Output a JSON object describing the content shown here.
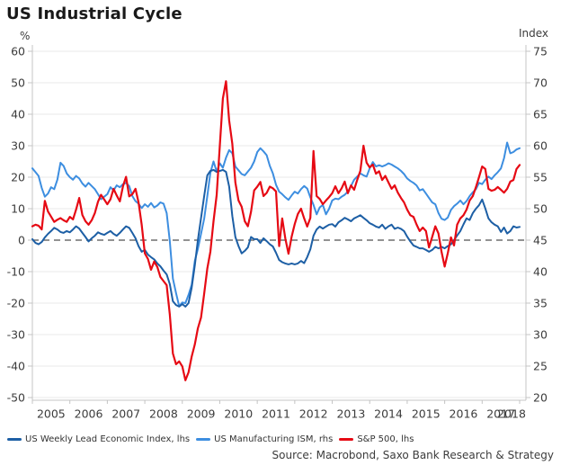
{
  "header": {
    "title": "US Industrial Cycle"
  },
  "footer": {
    "source": "Source: Macrobond, Saxo Bank Research & Strategy"
  },
  "chart_data": {
    "type": "line",
    "title": "US Industrial Cycle",
    "x_start": 2005.0,
    "x_end": 2018.0,
    "x_step_months": 1,
    "x_tick_years": [
      2005,
      2006,
      2007,
      2008,
      2009,
      2010,
      2011,
      2012,
      2013,
      2014,
      2015,
      2016,
      2017,
      2018
    ],
    "left_axis": {
      "unit": "%",
      "min": -50,
      "max": 60,
      "tick_step": 10,
      "ticks": [
        60,
        50,
        40,
        30,
        20,
        10,
        0,
        -10,
        -20,
        -30,
        -40,
        -50
      ]
    },
    "right_axis": {
      "unit": "Index",
      "min": 20,
      "max": 75,
      "tick_step": 5,
      "ticks": [
        75,
        70,
        65,
        60,
        55,
        50,
        45,
        40,
        35,
        30,
        25,
        20
      ]
    },
    "zero_line": {
      "lhs_value": 0,
      "style": "dashed",
      "color": "#6f6f6f"
    },
    "grid": "horizontal",
    "grid_color": "#e8e8e8",
    "frame_color": "#c4c4c4",
    "legend_position": "bottom-left",
    "draw_order": [
      1,
      0,
      2
    ],
    "series": [
      {
        "name": "US Weekly Lead Economic Index, lhs",
        "axis": "lhs",
        "color": "#1d5fa5",
        "width": 2,
        "values": [
          0.3,
          -0.9,
          -1.3,
          -0.6,
          0.9,
          2.0,
          2.9,
          3.9,
          3.4,
          2.6,
          2.3,
          2.9,
          2.5,
          3.4,
          4.4,
          3.7,
          2.3,
          1.0,
          -0.4,
          0.6,
          1.4,
          2.5,
          2.0,
          1.7,
          2.3,
          2.9,
          2.0,
          1.4,
          2.3,
          3.4,
          4.4,
          3.9,
          2.3,
          0.6,
          -1.9,
          -3.7,
          -3.1,
          -4.6,
          -5.4,
          -6.1,
          -7.4,
          -8.3,
          -9.7,
          -10.9,
          -14.0,
          -19.4,
          -20.6,
          -21.1,
          -20.3,
          -21.1,
          -20.0,
          -15.1,
          -8.0,
          0.0,
          7.0,
          14.0,
          20.6,
          22.0,
          22.3,
          21.7,
          22.0,
          22.3,
          21.7,
          17.0,
          7.7,
          1.0,
          -1.9,
          -4.2,
          -3.4,
          -2.3,
          1.0,
          0.3,
          0.3,
          -0.9,
          0.6,
          -0.3,
          -1.3,
          -2.0,
          -4.0,
          -6.3,
          -7.0,
          -7.4,
          -7.7,
          -7.4,
          -7.7,
          -7.4,
          -6.6,
          -7.3,
          -5.4,
          -2.9,
          1.4,
          3.4,
          4.3,
          3.7,
          4.3,
          4.9,
          5.1,
          4.3,
          5.7,
          6.3,
          7.1,
          6.6,
          6.0,
          6.9,
          7.4,
          7.9,
          7.1,
          6.3,
          5.4,
          4.9,
          4.3,
          4.0,
          4.9,
          3.6,
          4.4,
          4.9,
          3.6,
          4.0,
          3.6,
          2.9,
          1.1,
          -0.4,
          -1.7,
          -2.1,
          -2.6,
          -2.6,
          -3.1,
          -3.7,
          -3.1,
          -2.1,
          -2.6,
          -2.1,
          -2.6,
          -1.9,
          -1.3,
          0.0,
          1.5,
          2.9,
          5.0,
          6.9,
          6.4,
          8.6,
          10.0,
          11.1,
          12.9,
          10.1,
          6.9,
          5.7,
          4.9,
          4.4,
          2.6,
          4.0,
          2.1,
          2.9,
          4.4,
          4.0,
          4.2
        ]
      },
      {
        "name": "US Manufacturing ISM, rhs",
        "axis": "rhs",
        "color": "#3d8ee0",
        "width": 2,
        "values": [
          56.4,
          55.8,
          55.2,
          53.3,
          51.9,
          52.4,
          53.4,
          53.1,
          54.6,
          57.3,
          56.8,
          55.6,
          55.0,
          54.6,
          55.2,
          54.8,
          54.0,
          53.5,
          54.1,
          53.6,
          53.1,
          52.3,
          51.5,
          51.9,
          52.3,
          53.4,
          52.9,
          53.7,
          53.4,
          53.9,
          54.1,
          53.6,
          52.0,
          51.2,
          50.8,
          50.1,
          50.7,
          50.3,
          50.9,
          50.2,
          50.5,
          51.0,
          50.8,
          49.3,
          44.8,
          38.9,
          36.6,
          34.5,
          35.1,
          35.0,
          36.3,
          37.9,
          41.7,
          43.6,
          46.0,
          48.4,
          52.0,
          55.7,
          57.5,
          55.9,
          57.2,
          56.5,
          58.1,
          59.3,
          58.8,
          56.7,
          56.1,
          55.5,
          55.3,
          55.9,
          56.5,
          57.5,
          59.0,
          59.6,
          59.1,
          58.5,
          56.8,
          55.6,
          53.8,
          52.7,
          52.3,
          51.8,
          51.4,
          52.1,
          52.7,
          52.4,
          53.1,
          53.6,
          53.2,
          51.8,
          50.6,
          49.1,
          50.2,
          50.6,
          49.1,
          50.0,
          51.3,
          51.6,
          51.5,
          51.9,
          52.2,
          52.7,
          53.6,
          54.6,
          55.1,
          55.6,
          55.3,
          55.1,
          56.4,
          57.4,
          56.7,
          56.9,
          56.7,
          56.9,
          57.2,
          57.0,
          56.7,
          56.4,
          56.0,
          55.5,
          54.8,
          54.4,
          54.1,
          53.7,
          52.9,
          53.1,
          52.4,
          51.7,
          51.0,
          50.7,
          49.3,
          48.4,
          48.2,
          48.6,
          49.8,
          50.4,
          50.8,
          51.3,
          50.7,
          51.2,
          52.0,
          52.6,
          53.1,
          54.1,
          53.9,
          54.6,
          55.1,
          54.7,
          55.3,
          55.8,
          56.4,
          58.0,
          60.5,
          58.8,
          59.0,
          59.4,
          59.6
        ]
      },
      {
        "name": "S&P 500, lhs",
        "axis": "lhs",
        "color": "#e60a14",
        "width": 2.2,
        "values": [
          4.4,
          4.9,
          4.6,
          3.4,
          12.5,
          9.1,
          7.5,
          5.8,
          6.5,
          7.0,
          6.3,
          5.8,
          7.4,
          6.6,
          9.7,
          13.4,
          8.0,
          6.0,
          4.9,
          6.3,
          8.6,
          12.2,
          14.4,
          12.9,
          11.4,
          13.0,
          16.3,
          14.2,
          12.3,
          17.1,
          20.1,
          13.9,
          14.6,
          16.3,
          12.0,
          4.9,
          -4.2,
          -6.0,
          -9.4,
          -6.8,
          -8.5,
          -11.7,
          -13.0,
          -14.3,
          -23.7,
          -36.0,
          -39.4,
          -38.5,
          -40.1,
          -44.5,
          -42.0,
          -37.0,
          -33.1,
          -28.0,
          -24.6,
          -17.0,
          -9.0,
          -3.7,
          6.0,
          14.3,
          30.0,
          45.0,
          50.5,
          38.0,
          30.6,
          18.3,
          12.6,
          10.6,
          6.0,
          4.4,
          9.0,
          15.8,
          17.0,
          18.5,
          14.0,
          15.0,
          17.0,
          16.5,
          15.5,
          -1.9,
          6.9,
          0.5,
          -4.3,
          1.1,
          5.1,
          8.3,
          10.0,
          6.9,
          4.3,
          7.1,
          28.3,
          14.0,
          13.1,
          11.4,
          12.6,
          13.7,
          14.9,
          17.1,
          14.9,
          16.5,
          18.6,
          14.9,
          17.4,
          16.0,
          19.1,
          22.0,
          30.0,
          24.6,
          23.1,
          24.0,
          21.1,
          21.9,
          19.1,
          20.4,
          18.3,
          16.3,
          17.4,
          15.1,
          13.4,
          12.0,
          9.7,
          7.9,
          7.4,
          5.0,
          2.9,
          4.0,
          2.9,
          -2.3,
          1.0,
          4.4,
          2.1,
          -3.7,
          -8.4,
          -4.1,
          0.9,
          -1.7,
          4.9,
          6.9,
          7.9,
          9.7,
          12.6,
          14.0,
          16.9,
          20.0,
          23.4,
          22.6,
          16.3,
          15.7,
          16.0,
          16.9,
          16.0,
          15.1,
          16.3,
          18.6,
          19.1,
          22.6,
          23.9
        ]
      }
    ],
    "source": "Source: Macrobond, Saxo Bank Research & Strategy"
  }
}
